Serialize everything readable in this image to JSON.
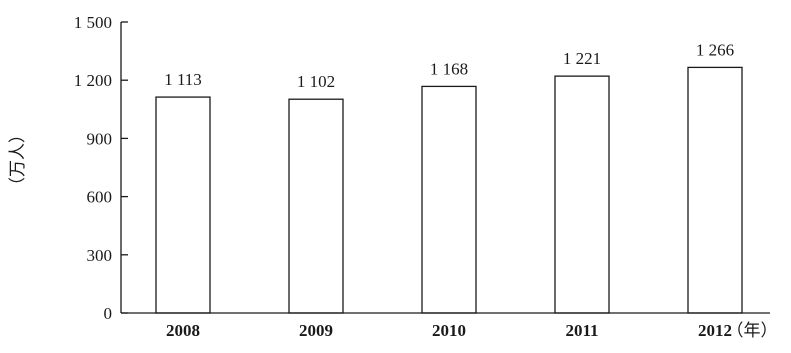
{
  "chart_data": {
    "type": "bar",
    "categories": [
      "2008",
      "2009",
      "2010",
      "2011",
      "2012"
    ],
    "values": [
      1113,
      1102,
      1168,
      1221,
      1266
    ],
    "value_labels": [
      "1 113",
      "1 102",
      "1 168",
      "1 221",
      "1 266"
    ],
    "ylabel": "（万人）",
    "xlabel": "（年）",
    "ylim": [
      0,
      1500
    ],
    "yticks": [
      0,
      300,
      600,
      900,
      1200,
      1500
    ],
    "ytick_labels": [
      "0",
      "300",
      "600",
      "900",
      "1 200",
      "1 500"
    ],
    "grid": false,
    "legend": "none",
    "colors": {
      "bar_fill": "#ffffff",
      "bar_stroke": "#1a1a1a",
      "axis": "#1a1a1a"
    }
  }
}
